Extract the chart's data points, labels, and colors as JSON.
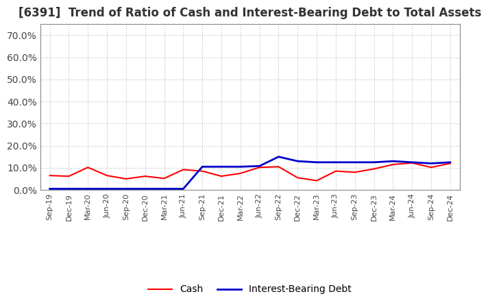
{
  "title": "[6391]  Trend of Ratio of Cash and Interest-Bearing Debt to Total Assets",
  "x_labels": [
    "Sep-19",
    "Dec-19",
    "Mar-20",
    "Jun-20",
    "Sep-20",
    "Dec-20",
    "Mar-21",
    "Jun-21",
    "Sep-21",
    "Dec-21",
    "Mar-22",
    "Jun-22",
    "Sep-22",
    "Dec-22",
    "Mar-23",
    "Jun-23",
    "Sep-23",
    "Dec-23",
    "Mar-24",
    "Jun-24",
    "Sep-24",
    "Dec-24"
  ],
  "cash": [
    6.5,
    6.2,
    10.2,
    6.5,
    5.0,
    6.2,
    5.2,
    9.2,
    8.5,
    6.2,
    7.5,
    10.2,
    10.5,
    5.5,
    4.2,
    8.5,
    8.0,
    9.5,
    11.5,
    12.2,
    10.2,
    12.0
  ],
  "debt": [
    0.5,
    0.5,
    0.5,
    0.5,
    0.5,
    0.5,
    0.5,
    0.5,
    10.5,
    10.5,
    10.5,
    10.8,
    15.0,
    13.0,
    12.5,
    12.5,
    12.5,
    12.5,
    13.0,
    12.5,
    12.0,
    12.5
  ],
  "cash_color": "#ff0000",
  "debt_color": "#0000cc",
  "ylim": [
    0,
    75
  ],
  "yticks": [
    0,
    10,
    20,
    30,
    40,
    50,
    60,
    70
  ],
  "ytick_labels": [
    "0.0%",
    "10.0%",
    "20.0%",
    "30.0%",
    "40.0%",
    "50.0%",
    "60.0%",
    "70.0%"
  ],
  "background_color": "#ffffff",
  "grid_color": "#bbbbbb",
  "title_fontsize": 12,
  "legend_cash": "Cash",
  "legend_debt": "Interest-Bearing Debt"
}
